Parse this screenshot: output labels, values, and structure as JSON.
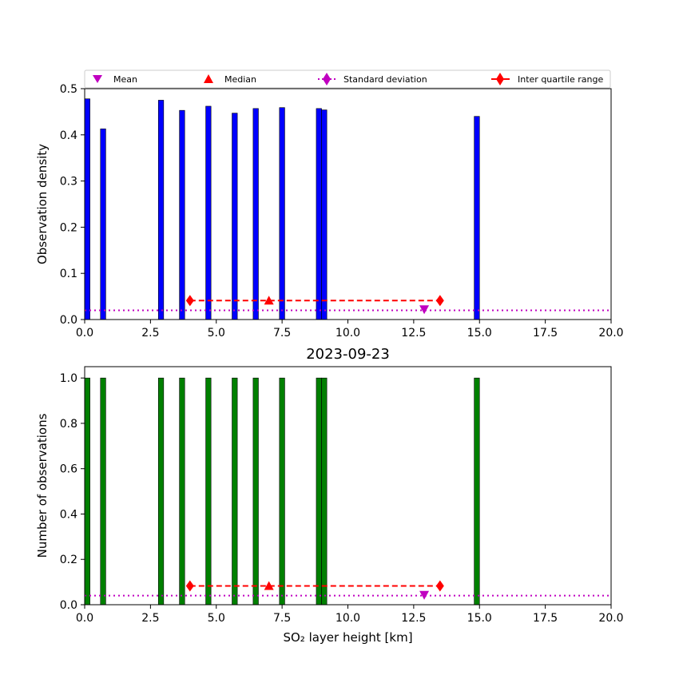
{
  "legend": {
    "mean": "Mean",
    "median": "Median",
    "std": "Standard deviation",
    "iqr": "Inter quartile range"
  },
  "colors": {
    "density_bar": "#0000ff",
    "count_bar": "#008000",
    "mean": "#c000c0",
    "median": "#ff0000",
    "std": "#c000c0",
    "iqr": "#ff0000"
  },
  "chart_data": [
    {
      "type": "bar",
      "title": "",
      "xlabel": "",
      "ylabel": "Observation density",
      "xlim": [
        0,
        20
      ],
      "ylim": [
        0,
        0.5
      ],
      "xticks": [
        "0.0",
        "2.5",
        "5.0",
        "7.5",
        "10.0",
        "12.5",
        "15.0",
        "17.5",
        "20.0"
      ],
      "yticks": [
        "0.0",
        "0.1",
        "0.2",
        "0.3",
        "0.4",
        "0.5"
      ],
      "bar_width": 0.2,
      "x": [
        0.1,
        0.7,
        2.9,
        3.7,
        4.7,
        5.7,
        6.5,
        7.5,
        8.9,
        9.1,
        14.9
      ],
      "values": [
        0.478,
        0.413,
        0.475,
        0.453,
        0.462,
        0.447,
        0.457,
        0.459,
        0.457,
        0.454,
        0.44
      ],
      "stats": {
        "mean": 12.9,
        "median": 7.0,
        "std_y": 0.02,
        "iqr": [
          4.0,
          13.5
        ],
        "marker_y": 0.041,
        "mean_y": 0.022
      },
      "legend_position": "top, outside"
    },
    {
      "type": "bar",
      "title": "2023-09-23",
      "xlabel": "SO₂ layer height [km]",
      "ylabel": "Number of observations",
      "xlim": [
        0,
        20
      ],
      "ylim": [
        0,
        1.05
      ],
      "xticks": [
        "0.0",
        "2.5",
        "5.0",
        "7.5",
        "10.0",
        "12.5",
        "15.0",
        "17.5",
        "20.0"
      ],
      "yticks": [
        "0.0",
        "0.2",
        "0.4",
        "0.6",
        "0.8",
        "1.0"
      ],
      "bar_width": 0.2,
      "x": [
        0.1,
        0.7,
        2.9,
        3.7,
        4.7,
        5.7,
        6.5,
        7.5,
        8.9,
        9.1,
        14.9
      ],
      "values": [
        1,
        1,
        1,
        1,
        1,
        1,
        1,
        1,
        1,
        1,
        1
      ],
      "stats": {
        "mean": 12.9,
        "median": 7.0,
        "std_y": 0.04,
        "iqr": [
          4.0,
          13.5
        ],
        "marker_y": 0.083,
        "mean_y": 0.043
      }
    }
  ]
}
